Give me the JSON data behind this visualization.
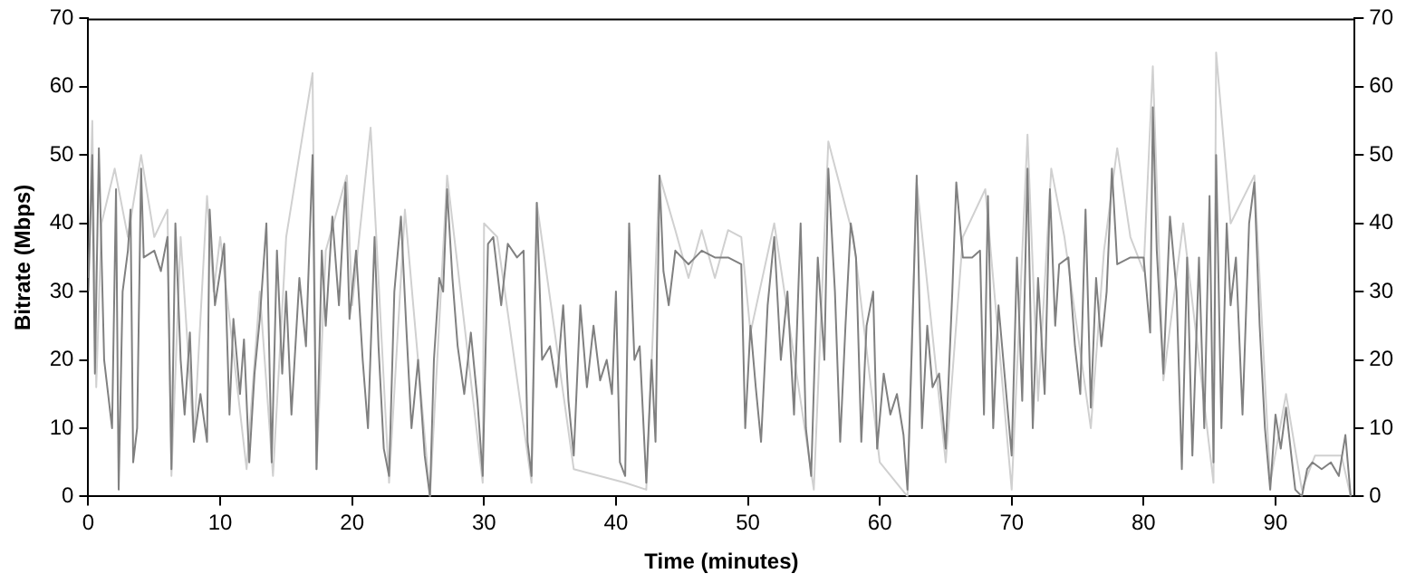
{
  "chart_data": {
    "type": "line",
    "xlabel": "Time (minutes)",
    "ylabel": "Bitrate (Mbps)",
    "xlim": [
      0,
      96
    ],
    "xticks": [
      0,
      10,
      20,
      30,
      40,
      50,
      60,
      70,
      80,
      90
    ],
    "ylim": [
      0,
      70
    ],
    "yticks": [
      0,
      10,
      20,
      30,
      40,
      50,
      60,
      70
    ],
    "y2lim": [
      0,
      70
    ],
    "y2ticks": [
      0,
      10,
      20,
      30,
      40,
      50,
      60,
      70
    ],
    "grid": false,
    "legend": false,
    "marker": "none",
    "line_style": "solid",
    "series": [
      {
        "color": "#d0d0d0",
        "x": [
          0,
          0.3,
          0.6,
          1,
          2,
          3,
          4,
          5,
          6,
          6.3,
          7,
          8,
          9,
          9.5,
          10,
          12,
          13,
          14,
          15,
          17,
          17.3,
          18,
          19.6,
          20,
          21.4,
          22.8,
          24,
          25.9,
          27.2,
          29.9,
          30,
          31,
          33.6,
          34,
          36.8,
          40.7,
          42.3,
          43.3,
          44.5,
          45.5,
          46.5,
          47.5,
          48.5,
          49.5,
          50.2,
          52,
          55,
          56.1,
          58,
          60,
          62.1,
          62.8,
          65,
          66.3,
          68,
          70,
          71.2,
          72,
          73,
          74,
          76,
          77,
          78,
          79,
          80,
          80.7,
          81.5,
          83,
          85.3,
          85.5,
          86.6,
          88.4,
          89.6,
          90.8,
          92,
          93,
          95,
          95.7
        ],
        "values": [
          32,
          55,
          16,
          40,
          48,
          38,
          50,
          38,
          42,
          3,
          38,
          8,
          44,
          30,
          38,
          4,
          30,
          3,
          38,
          62,
          4,
          36,
          47,
          28,
          54,
          2,
          42,
          0,
          47,
          2,
          40,
          38,
          2,
          43,
          4,
          2,
          1,
          47,
          39,
          32,
          39,
          32,
          39,
          38,
          24,
          40,
          1,
          52,
          38,
          5,
          0,
          46,
          5,
          38,
          45,
          1,
          53,
          14,
          48,
          38,
          10,
          36,
          51,
          38,
          33,
          63,
          17,
          40,
          2,
          65,
          40,
          47,
          2,
          15,
          1,
          6,
          6,
          0
        ]
      },
      {
        "color": "#808080",
        "x": [
          0,
          0.3,
          0.5,
          0.8,
          1.2,
          1.5,
          1.8,
          2.1,
          2.3,
          2.6,
          3,
          3.2,
          3.4,
          3.7,
          4,
          4.2,
          5,
          5.5,
          6,
          6.3,
          6.6,
          7,
          7.3,
          7.7,
          8,
          8.5,
          9,
          9.2,
          9.6,
          10,
          10.3,
          10.7,
          11,
          11.5,
          11.8,
          12.2,
          12.6,
          13,
          13.5,
          13.9,
          14.3,
          14.7,
          15,
          15.4,
          16,
          16.5,
          17,
          17.3,
          17.7,
          18,
          18.5,
          19,
          19.5,
          19.8,
          20.3,
          20.8,
          21.2,
          21.7,
          22,
          22.4,
          22.8,
          23.2,
          23.7,
          24.1,
          24.5,
          25,
          25.5,
          25.9,
          26.2,
          26.6,
          26.9,
          27.2,
          27.6,
          28,
          28.5,
          29,
          29.5,
          29.9,
          30.3,
          30.7,
          31.3,
          31.8,
          32.5,
          33,
          33.3,
          33.6,
          34,
          34.4,
          35,
          35.5,
          36,
          36.4,
          36.8,
          37.3,
          37.8,
          38.3,
          38.8,
          39.3,
          39.7,
          40,
          40.3,
          40.7,
          41,
          41.4,
          41.8,
          42.3,
          42.7,
          43,
          43.3,
          43.6,
          44,
          44.5,
          45.5,
          46.5,
          47.5,
          48.5,
          49.5,
          49.8,
          50.2,
          50.6,
          51,
          51.5,
          52,
          52.5,
          53,
          53.5,
          54,
          54.4,
          54.8,
          55.3,
          55.8,
          56.1,
          56.6,
          57,
          57.4,
          57.8,
          58.2,
          58.6,
          59,
          59.5,
          59.8,
          60.3,
          60.8,
          61.3,
          61.8,
          62.1,
          62.4,
          62.8,
          63.2,
          63.6,
          64,
          64.5,
          65,
          65.5,
          65.8,
          66.3,
          67,
          67.6,
          67.9,
          68.2,
          68.6,
          69,
          69.5,
          70,
          70.4,
          70.8,
          71.2,
          71.6,
          72,
          72.5,
          72.9,
          73.3,
          73.6,
          74.3,
          74.8,
          75.2,
          75.6,
          76,
          76.4,
          76.8,
          77.2,
          77.6,
          78,
          79,
          80,
          80.5,
          80.7,
          81,
          81.5,
          82,
          82.5,
          82.9,
          83.3,
          83.7,
          84.2,
          84.6,
          85,
          85.3,
          85.5,
          85.9,
          86.3,
          86.6,
          87,
          87.5,
          88,
          88.4,
          88.8,
          89.2,
          89.6,
          90,
          90.4,
          90.8,
          91.2,
          91.5,
          92,
          92.4,
          92.8,
          93.5,
          94.2,
          94.8,
          95.3,
          95.7
        ],
        "values": [
          30,
          50,
          18,
          51,
          20,
          15,
          10,
          45,
          1,
          30,
          36,
          42,
          5,
          10,
          48,
          35,
          36,
          33,
          38,
          4,
          40,
          20,
          12,
          24,
          8,
          15,
          8,
          42,
          28,
          33,
          37,
          12,
          26,
          15,
          23,
          5,
          18,
          26,
          40,
          5,
          36,
          18,
          30,
          12,
          32,
          22,
          50,
          4,
          36,
          25,
          41,
          28,
          46,
          26,
          36,
          20,
          10,
          38,
          22,
          7,
          3,
          30,
          41,
          25,
          10,
          20,
          6,
          0,
          20,
          32,
          30,
          45,
          32,
          22,
          15,
          24,
          14,
          3,
          37,
          38,
          28,
          37,
          35,
          36,
          8,
          3,
          43,
          20,
          22,
          16,
          28,
          14,
          6,
          28,
          16,
          25,
          17,
          20,
          15,
          30,
          5,
          3,
          40,
          20,
          22,
          2,
          20,
          8,
          47,
          33,
          28,
          36,
          34,
          36,
          35,
          35,
          34,
          10,
          25,
          16,
          8,
          28,
          38,
          20,
          30,
          12,
          40,
          10,
          3,
          35,
          20,
          48,
          30,
          8,
          25,
          40,
          35,
          8,
          25,
          30,
          7,
          18,
          12,
          15,
          9,
          1,
          20,
          47,
          10,
          25,
          16,
          18,
          7,
          30,
          46,
          35,
          35,
          36,
          12,
          44,
          10,
          28,
          17,
          6,
          35,
          14,
          48,
          10,
          32,
          15,
          45,
          25,
          34,
          35,
          22,
          15,
          42,
          13,
          32,
          22,
          30,
          48,
          34,
          35,
          35,
          24,
          57,
          36,
          18,
          41,
          30,
          4,
          35,
          6,
          35,
          10,
          44,
          5,
          50,
          10,
          40,
          28,
          35,
          12,
          40,
          46,
          25,
          10,
          1,
          12,
          7,
          13,
          6,
          1,
          0,
          4,
          5,
          4,
          5,
          3,
          9,
          0
        ]
      }
    ]
  }
}
